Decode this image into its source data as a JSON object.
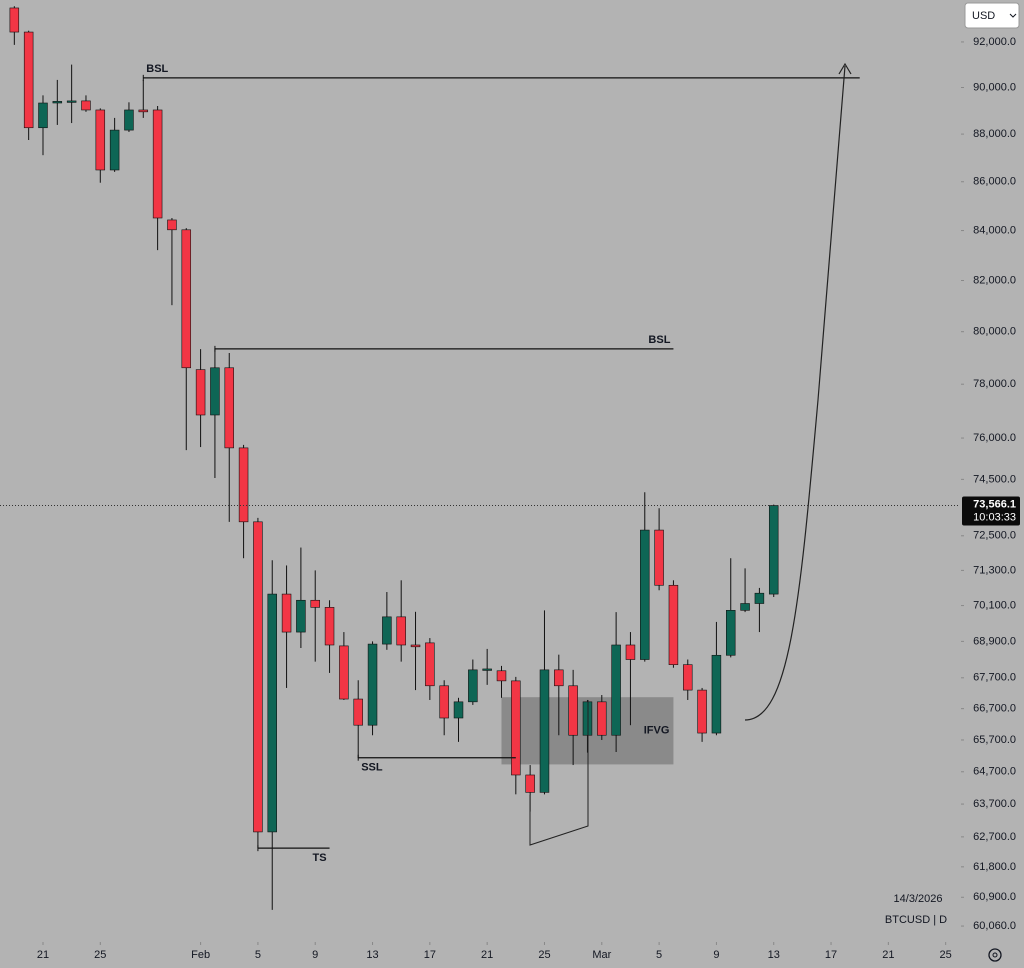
{
  "chart_data": {
    "type": "candlestick",
    "log_scale": true,
    "up_color": "#0e6655",
    "down_color": "#f23645",
    "currency": "USD",
    "date_stamp": "14/3/2026",
    "symbol_label": "BTCUSD | D",
    "last_price": {
      "value": 73566.1,
      "label": "73,566.1"
    },
    "countdown": "10:03:33",
    "xlim": [
      "2026-01-18",
      "2026-03-26"
    ],
    "ylim": [
      59600,
      93880
    ],
    "xticks": [
      {
        "value": "2026-01-21",
        "label": "21"
      },
      {
        "value": "2026-01-25",
        "label": "25"
      },
      {
        "value": "2026-02-01",
        "label": "Feb"
      },
      {
        "value": "2026-02-05",
        "label": "5"
      },
      {
        "value": "2026-02-09",
        "label": "9"
      },
      {
        "value": "2026-02-13",
        "label": "13"
      },
      {
        "value": "2026-02-17",
        "label": "17"
      },
      {
        "value": "2026-02-21",
        "label": "21"
      },
      {
        "value": "2026-02-25",
        "label": "25"
      },
      {
        "value": "2026-03-01",
        "label": "Mar"
      },
      {
        "value": "2026-03-05",
        "label": "5"
      },
      {
        "value": "2026-03-09",
        "label": "9"
      },
      {
        "value": "2026-03-13",
        "label": "13"
      },
      {
        "value": "2026-03-17",
        "label": "17"
      },
      {
        "value": "2026-03-21",
        "label": "21"
      },
      {
        "value": "2026-03-25",
        "label": "25"
      }
    ],
    "yticks": [
      {
        "value": 92000,
        "label": "92,000.0"
      },
      {
        "value": 90000,
        "label": "90,000.0"
      },
      {
        "value": 88000,
        "label": "88,000.0"
      },
      {
        "value": 86000,
        "label": "86,000.0"
      },
      {
        "value": 84000,
        "label": "84,000.0"
      },
      {
        "value": 82000,
        "label": "82,000.0"
      },
      {
        "value": 80000,
        "label": "80,000.0"
      },
      {
        "value": 78000,
        "label": "78,000.0"
      },
      {
        "value": 76000,
        "label": "76,000.0"
      },
      {
        "value": 74500,
        "label": "74,500.0"
      },
      {
        "value": 72500,
        "label": "72,500.0"
      },
      {
        "value": 71300,
        "label": "71,300.0"
      },
      {
        "value": 70100,
        "label": "70,100.0"
      },
      {
        "value": 68900,
        "label": "68,900.0"
      },
      {
        "value": 67700,
        "label": "67,700.0"
      },
      {
        "value": 66700,
        "label": "66,700.0"
      },
      {
        "value": 65700,
        "label": "65,700.0"
      },
      {
        "value": 64700,
        "label": "64,700.0"
      },
      {
        "value": 63700,
        "label": "63,700.0"
      },
      {
        "value": 62700,
        "label": "62,700.0"
      },
      {
        "value": 61800,
        "label": "61,800.0"
      },
      {
        "value": 60900,
        "label": "60,900.0"
      },
      {
        "value": 60060,
        "label": "60,060.0"
      }
    ],
    "x": [
      "2026-01-19",
      "2026-01-20",
      "2026-01-21",
      "2026-01-22",
      "2026-01-23",
      "2026-01-24",
      "2026-01-25",
      "2026-01-26",
      "2026-01-27",
      "2026-01-28",
      "2026-01-29",
      "2026-01-30",
      "2026-01-31",
      "2026-02-01",
      "2026-02-02",
      "2026-02-03",
      "2026-02-04",
      "2026-02-05",
      "2026-02-06",
      "2026-02-07",
      "2026-02-08",
      "2026-02-09",
      "2026-02-10",
      "2026-02-11",
      "2026-02-12",
      "2026-02-13",
      "2026-02-14",
      "2026-02-15",
      "2026-02-16",
      "2026-02-17",
      "2026-02-18",
      "2026-02-19",
      "2026-02-20",
      "2026-02-21",
      "2026-02-22",
      "2026-02-23",
      "2026-02-24",
      "2026-02-25",
      "2026-02-26",
      "2026-02-27",
      "2026-02-28",
      "2026-03-01",
      "2026-03-02",
      "2026-03-03",
      "2026-03-04",
      "2026-03-05",
      "2026-03-06",
      "2026-03-07",
      "2026-03-08",
      "2026-03-09",
      "2026-03-10",
      "2026-03-11",
      "2026-03-12",
      "2026-03-13"
    ],
    "open": [
      93520,
      92440,
      88270,
      89330,
      89400,
      89420,
      89030,
      86490,
      88170,
      89030,
      89030,
      84430,
      84030,
      78550,
      76850,
      78620,
      75640,
      72990,
      62850,
      70490,
      69210,
      70280,
      70040,
      68750,
      67010,
      66170,
      68810,
      69720,
      68780,
      68850,
      67440,
      66400,
      66920,
      67960,
      67930,
      67600,
      64600,
      64060,
      67960,
      67440,
      65850,
      66920,
      65850,
      68780,
      68300,
      72700,
      70790,
      68130,
      67300,
      65920,
      68440,
      69940,
      70170,
      70490
    ],
    "high": [
      93600,
      92500,
      89660,
      90330,
      91000,
      89660,
      89100,
      88690,
      89360,
      90330,
      89200,
      84510,
      84100,
      79330,
      79370,
      79180,
      75750,
      73130,
      71650,
      71470,
      72090,
      71300,
      70280,
      69210,
      67620,
      68900,
      70560,
      70960,
      69890,
      69010,
      67620,
      67050,
      68300,
      68650,
      68090,
      67730,
      64910,
      69940,
      68460,
      67960,
      66980,
      67140,
      69880,
      69210,
      74040,
      73470,
      70960,
      68300,
      67370,
      69550,
      71720,
      71370,
      70700,
      73600
    ],
    "low": [
      91870,
      87750,
      87110,
      88390,
      88470,
      88950,
      85960,
      86410,
      88090,
      88690,
      83210,
      81030,
      75560,
      75670,
      74550,
      72990,
      71720,
      62360,
      60530,
      67370,
      68680,
      68230,
      67860,
      66980,
      65130,
      65850,
      68620,
      68230,
      67300,
      66980,
      65850,
      65640,
      66820,
      67470,
      67050,
      64000,
      63470,
      64000,
      65850,
      64910,
      65300,
      65700,
      65320,
      66170,
      68230,
      70620,
      68030,
      66980,
      65640,
      65850,
      68370,
      69880,
      69210,
      70390
    ],
    "close": [
      92440,
      88270,
      89330,
      89400,
      89420,
      89030,
      86490,
      88170,
      89030,
      88950,
      84510,
      84030,
      78620,
      76850,
      78620,
      75640,
      72990,
      62850,
      70490,
      69210,
      70280,
      70040,
      68780,
      67010,
      66170,
      68810,
      69720,
      68780,
      68720,
      67440,
      66400,
      66920,
      67960,
      67990,
      67600,
      64600,
      64060,
      67960,
      67440,
      65850,
      66920,
      65850,
      68780,
      68300,
      72700,
      70790,
      68130,
      67300,
      65920,
      68440,
      69940,
      70170,
      70520,
      73566.1
    ],
    "annotations": [
      {
        "text": "BSL",
        "level": 90420,
        "start": "2026-01-28",
        "end": "2026-03-19",
        "anchor": "start"
      },
      {
        "text": "BSL",
        "level": 79340,
        "start": "2026-02-02",
        "end": "2026-03-06",
        "anchor": "end"
      },
      {
        "text": "SSL",
        "level": 65140,
        "start": "2026-02-12",
        "end": "2026-02-23",
        "anchor": "start"
      },
      {
        "text": "TS",
        "level": 62360,
        "start": "2026-02-05",
        "end": "2026-02-10",
        "anchor": "end"
      }
    ],
    "zones": [
      {
        "text": "IFVG",
        "low": 64930,
        "high": 67070,
        "start": "2026-02-22",
        "end": "2026-03-06"
      }
    ]
  }
}
